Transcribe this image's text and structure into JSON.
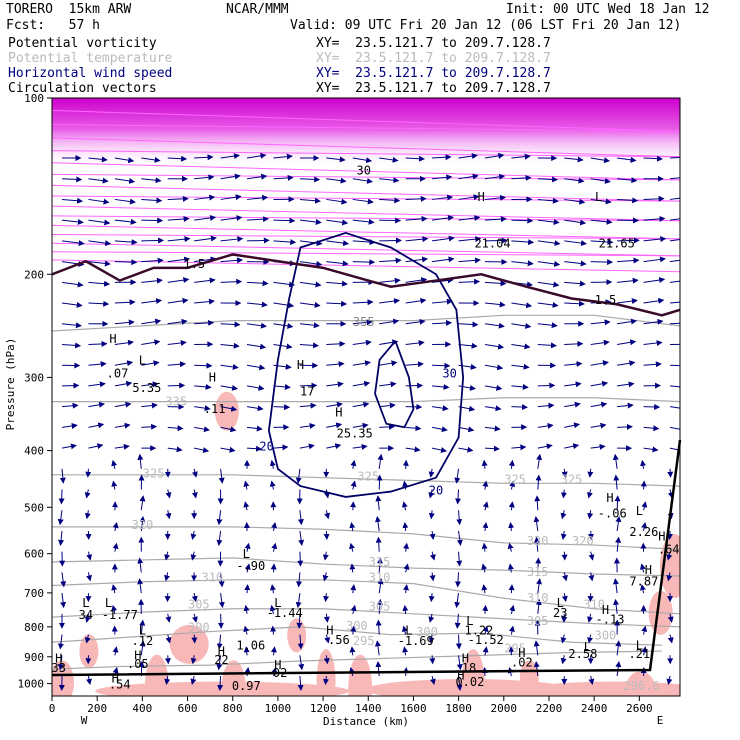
{
  "header": {
    "model": "TORERO  15km ARW",
    "center": "NCAR/MMM",
    "init": "Init: 00 UTC Wed 18 Jan 12",
    "fcst": "Fcst:   57 h",
    "valid": "Valid: 09 UTC Fri 20 Jan 12 (06 LST Fri 20 Jan 12)"
  },
  "legend": [
    {
      "name": "Potential vorticity",
      "xy": "XY=  23.5.121.7 to 209.7.128.7",
      "color": "#000000"
    },
    {
      "name": "Potential temperature",
      "xy": "XY=  23.5.121.7 to 209.7.128.7",
      "color": "#bbbbbb"
    },
    {
      "name": "Horizontal wind speed",
      "xy": "XY=  23.5.121.7 to 209.7.128.7",
      "color": "#000080"
    },
    {
      "name": "Circulation vectors",
      "xy": "XY=  23.5.121.7 to 209.7.128.7",
      "color": "#000000"
    }
  ],
  "chart_data": {
    "type": "cross-section",
    "xlabel": "Distance (km)",
    "ylabel": "Pressure (hPa)",
    "xlim": [
      0,
      2780
    ],
    "ylim": [
      1050,
      100
    ],
    "x_ticks": [
      0,
      200,
      400,
      600,
      800,
      1000,
      1200,
      1400,
      1600,
      1800,
      2000,
      2200,
      2400,
      2600
    ],
    "y_ticks": [
      100,
      200,
      300,
      400,
      500,
      600,
      700,
      800,
      900,
      1000
    ],
    "x_left_end": "W",
    "x_right_end": "E",
    "theta_contours": [
      {
        "level": "295",
        "points": [
          [
            0,
            945
          ],
          [
            300,
            935
          ],
          [
            700,
            930
          ],
          [
            1100,
            915
          ],
          [
            1500,
            905
          ],
          [
            1900,
            895
          ],
          [
            2300,
            885
          ],
          [
            2700,
            880
          ]
        ]
      },
      {
        "level": "300",
        "points": [
          [
            0,
            850
          ],
          [
            300,
            835
          ],
          [
            700,
            815
          ],
          [
            1100,
            800
          ],
          [
            1500,
            825
          ],
          [
            1900,
            820
          ],
          [
            2300,
            850
          ],
          [
            2700,
            860
          ]
        ]
      },
      {
        "level": "305",
        "points": [
          [
            0,
            770
          ],
          [
            400,
            755
          ],
          [
            800,
            745
          ],
          [
            1200,
            745
          ],
          [
            1600,
            760
          ],
          [
            2000,
            775
          ],
          [
            2400,
            790
          ],
          [
            2780,
            800
          ]
        ]
      },
      {
        "level": "310",
        "points": [
          [
            0,
            680
          ],
          [
            400,
            670
          ],
          [
            800,
            665
          ],
          [
            1200,
            665
          ],
          [
            1600,
            675
          ],
          [
            2000,
            715
          ],
          [
            2400,
            745
          ],
          [
            2780,
            760
          ]
        ]
      },
      {
        "level": "315",
        "points": [
          [
            0,
            620
          ],
          [
            400,
            615
          ],
          [
            800,
            610
          ],
          [
            1200,
            625
          ],
          [
            1600,
            635
          ],
          [
            2000,
            640
          ],
          [
            2400,
            650
          ],
          [
            2780,
            655
          ]
        ]
      },
      {
        "level": "320",
        "points": [
          [
            0,
            540
          ],
          [
            400,
            540
          ],
          [
            800,
            540
          ],
          [
            1200,
            545
          ],
          [
            1600,
            555
          ],
          [
            2000,
            575
          ],
          [
            2400,
            580
          ],
          [
            2780,
            590
          ]
        ]
      },
      {
        "level": "325",
        "points": [
          [
            0,
            440
          ],
          [
            400,
            440
          ],
          [
            800,
            440
          ],
          [
            1200,
            445
          ],
          [
            1600,
            450
          ],
          [
            2000,
            455
          ],
          [
            2400,
            455
          ],
          [
            2780,
            460
          ]
        ]
      },
      {
        "level": "335",
        "points": [
          [
            0,
            330
          ],
          [
            400,
            330
          ],
          [
            800,
            330
          ],
          [
            1200,
            330
          ],
          [
            1600,
            330
          ],
          [
            2000,
            325
          ],
          [
            2400,
            325
          ],
          [
            2780,
            330
          ]
        ]
      },
      {
        "level": "355",
        "points": [
          [
            0,
            250
          ],
          [
            400,
            245
          ],
          [
            800,
            240
          ],
          [
            1200,
            240
          ],
          [
            1600,
            240
          ],
          [
            2000,
            235
          ],
          [
            2400,
            235
          ],
          [
            2780,
            245
          ]
        ]
      }
    ],
    "pv_tropopause": {
      "level": "1.5",
      "points": [
        [
          0,
          200
        ],
        [
          150,
          190
        ],
        [
          300,
          205
        ],
        [
          450,
          195
        ],
        [
          600,
          195
        ],
        [
          800,
          185
        ],
        [
          1000,
          190
        ],
        [
          1200,
          195
        ],
        [
          1400,
          205
        ],
        [
          1500,
          210
        ],
        [
          1700,
          205
        ],
        [
          1900,
          200
        ],
        [
          2100,
          210
        ],
        [
          2300,
          220
        ],
        [
          2500,
          225
        ],
        [
          2700,
          235
        ],
        [
          2780,
          230
        ]
      ]
    },
    "wind_contours": [
      {
        "level": "20",
        "points": [
          [
            1050,
            220
          ],
          [
            1000,
            280
          ],
          [
            960,
            370
          ],
          [
            1000,
            430
          ],
          [
            1100,
            460
          ],
          [
            1300,
            480
          ],
          [
            1500,
            470
          ],
          [
            1700,
            445
          ],
          [
            1800,
            380
          ],
          [
            1820,
            300
          ],
          [
            1790,
            230
          ],
          [
            1700,
            200
          ],
          [
            1500,
            180
          ],
          [
            1300,
            170
          ],
          [
            1100,
            180
          ],
          [
            1050,
            220
          ]
        ]
      },
      {
        "level": "30",
        "points": [
          [
            1520,
            260
          ],
          [
            1580,
            300
          ],
          [
            1600,
            340
          ],
          [
            1560,
            365
          ],
          [
            1480,
            360
          ],
          [
            1430,
            320
          ],
          [
            1450,
            280
          ],
          [
            1520,
            260
          ]
        ]
      }
    ],
    "labels": [
      {
        "text": "H",
        "x": 270,
        "p": 262,
        "color": "#000"
      },
      {
        "text": ".07",
        "x": 290,
        "p": 300,
        "color": "#000"
      },
      {
        "text": "L",
        "x": 400,
        "p": 285,
        "color": "#000"
      },
      {
        "text": "5.35",
        "x": 420,
        "p": 318,
        "color": "#000"
      },
      {
        "text": "H",
        "x": 710,
        "p": 305,
        "color": "#000"
      },
      {
        "text": ".11",
        "x": 720,
        "p": 345,
        "color": "#000"
      },
      {
        "text": "H",
        "x": 1100,
        "p": 290,
        "color": "#000"
      },
      {
        "text": "17",
        "x": 1130,
        "p": 322,
        "color": "#000"
      },
      {
        "text": "H",
        "x": 1270,
        "p": 350,
        "color": "#000"
      },
      {
        "text": "25.35",
        "x": 1340,
        "p": 380,
        "color": "#000"
      },
      {
        "text": "1.5",
        "x": 630,
        "p": 195,
        "color": "#000"
      },
      {
        "text": "1.5",
        "x": 2450,
        "p": 225,
        "color": "#000"
      },
      {
        "text": "H",
        "x": 1900,
        "p": 150,
        "color": "#000"
      },
      {
        "text": "21.04",
        "x": 1950,
        "p": 180,
        "color": "#000"
      },
      {
        "text": "L",
        "x": 2420,
        "p": 150,
        "color": "#000"
      },
      {
        "text": "21.65",
        "x": 2500,
        "p": 180,
        "color": "#000"
      },
      {
        "text": "30",
        "x": 1380,
        "p": 135,
        "color": "#000"
      },
      {
        "text": "20",
        "x": 950,
        "p": 400,
        "color": "#000080"
      },
      {
        "text": "20",
        "x": 1700,
        "p": 475,
        "color": "#000080"
      },
      {
        "text": "30",
        "x": 1760,
        "p": 300,
        "color": "#000080"
      },
      {
        "text": "355",
        "x": 1380,
        "p": 245,
        "color": "#888"
      },
      {
        "text": "335",
        "x": 550,
        "p": 335,
        "color": "#bbb"
      },
      {
        "text": "325",
        "x": 450,
        "p": 445,
        "color": "#bbb"
      },
      {
        "text": "325",
        "x": 1400,
        "p": 450,
        "color": "#bbb"
      },
      {
        "text": "325",
        "x": 2050,
        "p": 455,
        "color": "#bbb"
      },
      {
        "text": "325",
        "x": 2300,
        "p": 455,
        "color": "#bbb"
      },
      {
        "text": "320",
        "x": 400,
        "p": 545,
        "color": "#bbb"
      },
      {
        "text": "320",
        "x": 2150,
        "p": 580,
        "color": "#bbb"
      },
      {
        "text": "320",
        "x": 2350,
        "p": 580,
        "color": "#bbb"
      },
      {
        "text": "315",
        "x": 1450,
        "p": 630,
        "color": "#bbb"
      },
      {
        "text": "315",
        "x": 2150,
        "p": 655,
        "color": "#bbb"
      },
      {
        "text": "310",
        "x": 710,
        "p": 670,
        "color": "#bbb"
      },
      {
        "text": "310",
        "x": 1450,
        "p": 670,
        "color": "#bbb"
      },
      {
        "text": "310",
        "x": 2150,
        "p": 725,
        "color": "#bbb"
      },
      {
        "text": "310",
        "x": 2400,
        "p": 745,
        "color": "#bbb"
      },
      {
        "text": "305",
        "x": 650,
        "p": 745,
        "color": "#bbb"
      },
      {
        "text": "305",
        "x": 1450,
        "p": 750,
        "color": "#bbb"
      },
      {
        "text": "305",
        "x": 2150,
        "p": 795,
        "color": "#bbb"
      },
      {
        "text": "300",
        "x": 650,
        "p": 815,
        "color": "#bbb"
      },
      {
        "text": "300",
        "x": 1350,
        "p": 810,
        "color": "#bbb"
      },
      {
        "text": "300",
        "x": 1660,
        "p": 830,
        "color": "#bbb"
      },
      {
        "text": "300",
        "x": 2450,
        "p": 840,
        "color": "#bbb"
      },
      {
        "text": "295",
        "x": 1380,
        "p": 860,
        "color": "#bbb"
      },
      {
        "text": "295",
        "x": 2050,
        "p": 885,
        "color": "#bbb"
      },
      {
        "text": "L",
        "x": 860,
        "p": 610,
        "color": "#000"
      },
      {
        "text": "-.90",
        "x": 880,
        "p": 640,
        "color": "#000"
      },
      {
        "text": "H",
        "x": 2470,
        "p": 490,
        "color": "#000"
      },
      {
        "text": "-.06",
        "x": 2480,
        "p": 520,
        "color": "#000"
      },
      {
        "text": "L",
        "x": 2600,
        "p": 515,
        "color": "#000"
      },
      {
        "text": "2.26",
        "x": 2620,
        "p": 560,
        "color": "#000"
      },
      {
        "text": "H",
        "x": 2700,
        "p": 570,
        "color": "#000"
      },
      {
        "text": ".64",
        "x": 2730,
        "p": 600,
        "color": "#000"
      },
      {
        "text": "H",
        "x": 2640,
        "p": 650,
        "color": "#000"
      },
      {
        "text": "7.87",
        "x": 2620,
        "p": 680,
        "color": "#000"
      },
      {
        "text": "L",
        "x": 150,
        "p": 740,
        "color": "#000"
      },
      {
        "text": "34",
        "x": 150,
        "p": 775,
        "color": "#000"
      },
      {
        "text": "L",
        "x": 250,
        "p": 740,
        "color": "#000"
      },
      {
        "text": "-1.77",
        "x": 300,
        "p": 775,
        "color": "#000"
      },
      {
        "text": "L",
        "x": 1000,
        "p": 740,
        "color": "#000"
      },
      {
        "text": "-1.44",
        "x": 1030,
        "p": 770,
        "color": "#000"
      },
      {
        "text": "L",
        "x": 2250,
        "p": 740,
        "color": "#000"
      },
      {
        "text": "23",
        "x": 2250,
        "p": 770,
        "color": "#000"
      },
      {
        "text": "H",
        "x": 2450,
        "p": 760,
        "color": "#000"
      },
      {
        "text": "-.13",
        "x": 2470,
        "p": 790,
        "color": "#000"
      },
      {
        "text": "L",
        "x": 1850,
        "p": 795,
        "color": "#000"
      },
      {
        "text": "1.22",
        "x": 1890,
        "p": 825,
        "color": "#000"
      },
      {
        "text": "L",
        "x": 1580,
        "p": 825,
        "color": "#000"
      },
      {
        "text": "-1.69",
        "x": 1610,
        "p": 860,
        "color": "#000"
      },
      {
        "text": "-1.52",
        "x": 1920,
        "p": 855,
        "color": "#000"
      },
      {
        "text": "H",
        "x": 1230,
        "p": 825,
        "color": "#000"
      },
      {
        "text": ".56",
        "x": 1270,
        "p": 855,
        "color": "#000"
      },
      {
        "text": "L",
        "x": 400,
        "p": 825,
        "color": "#000"
      },
      {
        "text": ".12",
        "x": 400,
        "p": 860,
        "color": "#000"
      },
      {
        "text": "1.06",
        "x": 880,
        "p": 875,
        "color": "#000"
      },
      {
        "text": "H",
        "x": 750,
        "p": 895,
        "color": "#000"
      },
      {
        "text": "22",
        "x": 750,
        "p": 925,
        "color": "#000"
      },
      {
        "text": "H",
        "x": 380,
        "p": 910,
        "color": "#000"
      },
      {
        "text": ".05",
        "x": 380,
        "p": 940,
        "color": "#000"
      },
      {
        "text": "H",
        "x": 30,
        "p": 920,
        "color": "#000"
      },
      {
        "text": "33",
        "x": 30,
        "p": 955,
        "color": "#000"
      },
      {
        "text": "L",
        "x": 2370,
        "p": 880,
        "color": "#000"
      },
      {
        "text": "2.58",
        "x": 2350,
        "p": 905,
        "color": "#000"
      },
      {
        "text": "L",
        "x": 2600,
        "p": 875,
        "color": "#000"
      },
      {
        "text": ".21",
        "x": 2600,
        "p": 905,
        "color": "#000"
      },
      {
        "text": "H",
        "x": 1830,
        "p": 920,
        "color": "#000"
      },
      {
        "text": ".18",
        "x": 1830,
        "p": 955,
        "color": "#000"
      },
      {
        "text": "H",
        "x": 2080,
        "p": 900,
        "color": "#000"
      },
      {
        "text": ".02",
        "x": 2080,
        "p": 935,
        "color": "#000"
      },
      {
        "text": "H",
        "x": 1000,
        "p": 945,
        "color": "#000"
      },
      {
        "text": "02",
        "x": 1010,
        "p": 975,
        "color": "#000"
      },
      {
        "text": "H",
        "x": 1810,
        "p": 985,
        "color": "#000"
      },
      {
        "text": "0.02",
        "x": 1850,
        "p": 1010,
        "color": "#000"
      },
      {
        "text": "H",
        "x": 280,
        "p": 995,
        "color": "#000"
      },
      {
        "text": ".54",
        "x": 300,
        "p": 1020,
        "color": "#000"
      },
      {
        "text": "0.97",
        "x": 860,
        "p": 1025,
        "color": "#000"
      },
      {
        "text": "296.6",
        "x": 2610,
        "p": 1025,
        "color": "#bbb"
      }
    ],
    "wind_vectors_note": "",
    "pv_shading": [
      {
        "x": 730,
        "p": 320,
        "w": 40,
        "h": 70
      },
      {
        "x": 2700,
        "p": 560,
        "w": 50,
        "h": 120
      },
      {
        "x": 2650,
        "p": 700,
        "w": 40,
        "h": 80
      },
      {
        "x": 530,
        "p": 800,
        "w": 70,
        "h": 70
      },
      {
        "x": 130,
        "p": 830,
        "w": 30,
        "h": 60
      },
      {
        "x": 420,
        "p": 900,
        "w": 40,
        "h": 120
      },
      {
        "x": 760,
        "p": 920,
        "w": 40,
        "h": 100
      },
      {
        "x": 1050,
        "p": 780,
        "w": 30,
        "h": 60
      },
      {
        "x": 1180,
        "p": 880,
        "w": 30,
        "h": 120
      },
      {
        "x": 1320,
        "p": 900,
        "w": 40,
        "h": 130
      },
      {
        "x": 1820,
        "p": 880,
        "w": 40,
        "h": 150
      },
      {
        "x": 2080,
        "p": 920,
        "w": 30,
        "h": 60
      },
      {
        "x": 2550,
        "p": 960,
        "w": 50,
        "h": 60
      },
      {
        "x": 0,
        "p": 920,
        "w": 40,
        "h": 80
      },
      {
        "x": 200,
        "p": 1000,
        "w": 500,
        "h": 30
      },
      {
        "x": 1400,
        "p": 990,
        "w": 400,
        "h": 35
      },
      {
        "x": 2100,
        "p": 1000,
        "w": 350,
        "h": 25
      }
    ]
  }
}
